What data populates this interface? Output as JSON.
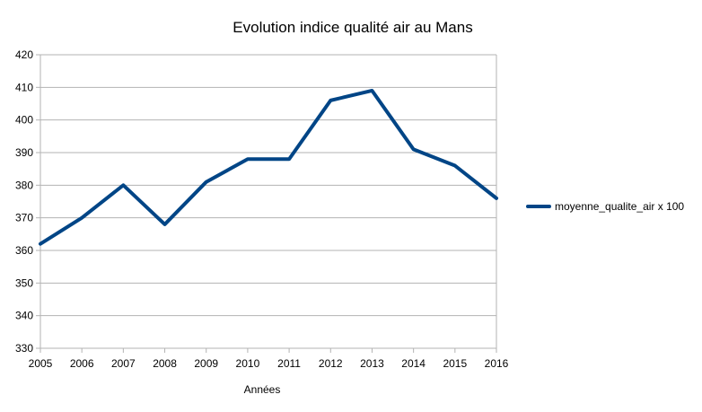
{
  "chart_data": {
    "type": "line",
    "title": "Evolution indice qualité air au Mans",
    "xlabel": "Années",
    "ylabel": "",
    "x": [
      "2005",
      "2006",
      "2007",
      "2008",
      "2009",
      "2010",
      "2011",
      "2012",
      "2013",
      "2014",
      "2015",
      "2016"
    ],
    "ylim": [
      330,
      420
    ],
    "yticks": [
      330,
      340,
      350,
      360,
      370,
      380,
      390,
      400,
      410,
      420
    ],
    "grid": true,
    "legend_position": "right",
    "series": [
      {
        "name": "moyenne_qualite_air x 100",
        "color": "#004586",
        "values": [
          362,
          370,
          380,
          368,
          381,
          388,
          388,
          406,
          409,
          391,
          386,
          376
        ]
      }
    ]
  }
}
